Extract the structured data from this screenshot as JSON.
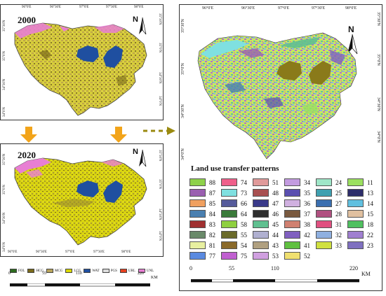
{
  "left_maps": {
    "map_2000": {
      "year": "2000",
      "top_ticks": [
        "96°0'E",
        "96°30'E",
        "97°0'E",
        "97°30'E",
        "98°0'E"
      ],
      "left_ticks": [
        "35°30'N",
        "35°0'N",
        "34°30'N",
        "34°0'N"
      ],
      "right_ticks": [
        "35°30'N",
        "35°0'N",
        "34°30'N",
        "34°0'N"
      ]
    },
    "map_2020": {
      "year": "2020",
      "left_ticks": [
        "35°30'N",
        "35°0'N",
        "34°30'N",
        "34°0'N"
      ],
      "right_ticks": [
        "35°30'N",
        "35°0'N",
        "34°30'N",
        "34°0'N"
      ],
      "bottom_ticks": [
        "96°0'E",
        "96°30'E",
        "97°0'E",
        "97°30'E",
        "98°0'E"
      ]
    },
    "north_label": "N",
    "legend": [
      {
        "code": "FOL",
        "color": "#2e6b1f"
      },
      {
        "code": "HCG",
        "color": "#7a6a1a"
      },
      {
        "code": "MCG",
        "color": "#b8a45a"
      },
      {
        "code": "LCG",
        "color": "#d9d800"
      },
      {
        "code": "WAT",
        "color": "#1f4fa0"
      },
      {
        "code": "PGS",
        "color": "#dcdcdc"
      },
      {
        "code": "URL",
        "color": "#e5401f"
      },
      {
        "code": "UNL",
        "color": "#e87fd3"
      }
    ],
    "scale": {
      "labels": [
        "0",
        "55",
        "110",
        "220"
      ],
      "unit": "KM"
    }
  },
  "right_map": {
    "top_ticks": [
      "96°0'E",
      "96°30'E",
      "97°0'E",
      "97°30'E",
      "98°0'E"
    ],
    "left_ticks": [
      "35°30'N",
      "35°0'N",
      "34°30'N",
      "34°0'N"
    ],
    "right_ticks": [
      "35°30'N",
      "35°0'N",
      "34°30'N",
      "34°0'N"
    ],
    "north_label": "N",
    "legend_title": "Land use transfer patterns",
    "legend": [
      [
        "88",
        "74",
        "51",
        "34",
        "24",
        "11"
      ],
      [
        "87",
        "73",
        "48",
        "35",
        "25",
        "13"
      ],
      [
        "85",
        "66",
        "47",
        "36",
        "27",
        "14"
      ],
      [
        "84",
        "64",
        "46",
        "37",
        "28",
        "15"
      ],
      [
        "83",
        "58",
        "45",
        "38",
        "31",
        "18"
      ],
      [
        "82",
        "55",
        "44",
        "42",
        "32",
        "22"
      ],
      [
        "81",
        "54",
        "43",
        "41",
        "33",
        "23"
      ],
      [
        "77",
        "75",
        "53",
        "52",
        "",
        ""
      ]
    ],
    "legend_colors": [
      [
        "#8ed14a",
        "#ef5f8a",
        "#e09a9a",
        "#c39be0",
        "#9fe6c8",
        "#9be05f"
      ],
      [
        "#9a5fb0",
        "#7fe0e0",
        "#a85050",
        "#5a4fb0",
        "#3fa0b0",
        "#2d2d6a"
      ],
      [
        "#f0a060",
        "#555a9a",
        "#3a3a8a",
        "#d0b0e0",
        "#3a6fb0",
        "#60c0e0"
      ],
      [
        "#4a7fb0",
        "#3a7a3a",
        "#2e2e2e",
        "#7a5a40",
        "#b05080",
        "#e0c0a0"
      ],
      [
        "#a03030",
        "#8fd040",
        "#60c090",
        "#d08070",
        "#e05080",
        "#50c060"
      ],
      [
        "#6a8a6a",
        "#6a6a2a",
        "#b0b0d0",
        "#8060c0",
        "#8fb0e0",
        "#a07fd0"
      ],
      [
        "#e8f0a0",
        "#8a6a2a",
        "#b0a080",
        "#60c040",
        "#d0e040",
        "#7f70c0"
      ],
      [
        "#5a8ae0",
        "#c060d0",
        "#d0a0e0",
        "#f0e070",
        "",
        ""
      ]
    ],
    "scale": {
      "labels": [
        "0",
        "55",
        "110",
        "220"
      ],
      "unit": "KM"
    }
  }
}
